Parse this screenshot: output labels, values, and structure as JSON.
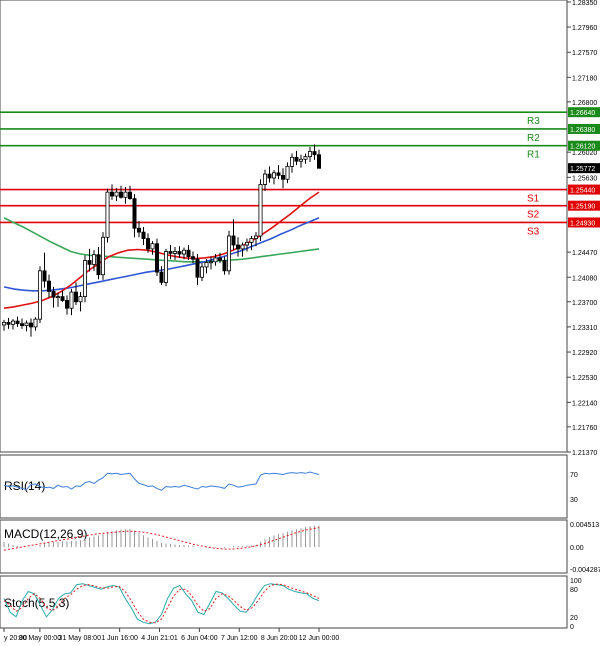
{
  "chart_data": [
    {
      "type": "candlestick",
      "title": "",
      "price_axis": {
        "ylim": [
          1.2137,
          1.2838
        ],
        "ticks": [
          "1.28350",
          "1.27960",
          "1.27570",
          "1.27180",
          "1.26800",
          "1.26020",
          "1.25630",
          "1.24470",
          "1.24080",
          "1.23700",
          "1.23310",
          "1.22920",
          "1.22530",
          "1.22140",
          "1.21760",
          "1.21370"
        ]
      },
      "x_labels": [
        "y 20:00",
        "30 May 00:00",
        "31 May 08:00",
        "1 Jun 16:00",
        "4 Jun 21:01",
        "6 Jun 04:00",
        "7 Jun 12:00",
        "8 Jun 20:00",
        "12 Jun 00:00"
      ],
      "x_label_candle_index": [
        0,
        9,
        19,
        29,
        39,
        49,
        59,
        69,
        79
      ],
      "current_price": "1.25772",
      "levels": [
        {
          "name": "R3",
          "value": 1.2664,
          "label": "1.26640",
          "color": "#1a8a1a"
        },
        {
          "name": "R2",
          "value": 1.2638,
          "label": "1.26380",
          "color": "#1a8a1a"
        },
        {
          "name": "R1",
          "value": 1.2612,
          "label": "1.26120",
          "color": "#1a8a1a"
        },
        {
          "name": "S1",
          "value": 1.2544,
          "label": "1.25440",
          "color": "#e00000"
        },
        {
          "name": "S2",
          "value": 1.2519,
          "label": "1.25190",
          "color": "#e00000"
        },
        {
          "name": "S3",
          "value": 1.2493,
          "label": "1.24930",
          "color": "#e00000"
        }
      ],
      "candles_ohlc": [
        [
          1.2334,
          1.2342,
          1.2325,
          1.2338
        ],
        [
          1.2338,
          1.2345,
          1.2328,
          1.2335
        ],
        [
          1.2335,
          1.2343,
          1.2327,
          1.234
        ],
        [
          1.234,
          1.2347,
          1.2331,
          1.2336
        ],
        [
          1.2336,
          1.2344,
          1.2328,
          1.2333
        ],
        [
          1.2333,
          1.2341,
          1.2324,
          1.2337
        ],
        [
          1.2337,
          1.2344,
          1.2316,
          1.2331
        ],
        [
          1.2331,
          1.2346,
          1.2325,
          1.2343
        ],
        [
          1.2343,
          1.2425,
          1.2337,
          1.2418
        ],
        [
          1.2418,
          1.2446,
          1.2392,
          1.2402
        ],
        [
          1.2402,
          1.2412,
          1.2376,
          1.2386
        ],
        [
          1.2386,
          1.2393,
          1.2361,
          1.2377
        ],
        [
          1.2377,
          1.2384,
          1.2362,
          1.2378
        ],
        [
          1.2378,
          1.2387,
          1.237,
          1.2372
        ],
        [
          1.2372,
          1.238,
          1.235,
          1.236
        ],
        [
          1.236,
          1.239,
          1.2349,
          1.2385
        ],
        [
          1.2385,
          1.24,
          1.2365,
          1.237
        ],
        [
          1.237,
          1.2385,
          1.2355,
          1.2378
        ],
        [
          1.2378,
          1.2442,
          1.2369,
          1.2434
        ],
        [
          1.2434,
          1.2452,
          1.2417,
          1.2428
        ],
        [
          1.2428,
          1.245,
          1.2418,
          1.2443
        ],
        [
          1.2443,
          1.2455,
          1.2405,
          1.2412
        ],
        [
          1.2412,
          1.2478,
          1.2404,
          1.247
        ],
        [
          1.247,
          1.2545,
          1.2462,
          1.254
        ],
        [
          1.254,
          1.2552,
          1.2528,
          1.2534
        ],
        [
          1.2534,
          1.2546,
          1.2526,
          1.254
        ],
        [
          1.254,
          1.255,
          1.253,
          1.2532
        ],
        [
          1.2532,
          1.2548,
          1.2522,
          1.254
        ],
        [
          1.254,
          1.255,
          1.2528,
          1.253
        ],
        [
          1.253,
          1.2537,
          1.247,
          1.2484
        ],
        [
          1.2484,
          1.2495,
          1.247,
          1.2478
        ],
        [
          1.2478,
          1.2486,
          1.2458,
          1.2468
        ],
        [
          1.2468,
          1.2476,
          1.2446,
          1.2452
        ],
        [
          1.2452,
          1.2464,
          1.2443,
          1.246
        ],
        [
          1.246,
          1.2468,
          1.241,
          1.2416
        ],
        [
          1.2416,
          1.2425,
          1.2396,
          1.24
        ],
        [
          1.24,
          1.2452,
          1.2394,
          1.2448
        ],
        [
          1.2448,
          1.2458,
          1.2436,
          1.2445
        ],
        [
          1.2445,
          1.2455,
          1.2435,
          1.2448
        ],
        [
          1.2448,
          1.2456,
          1.2438,
          1.2444
        ],
        [
          1.2444,
          1.2454,
          1.2436,
          1.245
        ],
        [
          1.245,
          1.2458,
          1.2435,
          1.244
        ],
        [
          1.244,
          1.2448,
          1.243,
          1.2436
        ],
        [
          1.2436,
          1.2444,
          1.2396,
          1.2408
        ],
        [
          1.2408,
          1.243,
          1.2402,
          1.2424
        ],
        [
          1.2424,
          1.2436,
          1.2414,
          1.2431
        ],
        [
          1.2431,
          1.244,
          1.242,
          1.2432
        ],
        [
          1.2432,
          1.2444,
          1.2426,
          1.2438
        ],
        [
          1.2438,
          1.2446,
          1.243,
          1.2434
        ],
        [
          1.2434,
          1.244,
          1.2412,
          1.2418
        ],
        [
          1.2418,
          1.248,
          1.2412,
          1.2472
        ],
        [
          1.2472,
          1.2498,
          1.245,
          1.2458
        ],
        [
          1.2458,
          1.247,
          1.244,
          1.2452
        ],
        [
          1.2452,
          1.2462,
          1.244,
          1.2458
        ],
        [
          1.2458,
          1.2468,
          1.2448,
          1.2462
        ],
        [
          1.2462,
          1.2472,
          1.245,
          1.2468
        ],
        [
          1.2468,
          1.2478,
          1.2456,
          1.2472
        ],
        [
          1.2472,
          1.256,
          1.2464,
          1.2552
        ],
        [
          1.2552,
          1.2575,
          1.2542,
          1.2568
        ],
        [
          1.2568,
          1.258,
          1.2555,
          1.2562
        ],
        [
          1.2562,
          1.2574,
          1.2552,
          1.257
        ],
        [
          1.257,
          1.2582,
          1.256,
          1.2566
        ],
        [
          1.2566,
          1.2577,
          1.2546,
          1.256
        ],
        [
          1.256,
          1.2586,
          1.2554,
          1.258
        ],
        [
          1.258,
          1.26,
          1.257,
          1.2594
        ],
        [
          1.2594,
          1.2604,
          1.2582,
          1.2588
        ],
        [
          1.2588,
          1.2598,
          1.2578,
          1.2591
        ],
        [
          1.2591,
          1.26,
          1.2584,
          1.2595
        ],
        [
          1.2595,
          1.261,
          1.2587,
          1.2603
        ],
        [
          1.2603,
          1.2614,
          1.259,
          1.2598
        ],
        [
          1.2598,
          1.2606,
          1.2588,
          1.2577
        ]
      ],
      "ma_red": [
        1.236,
        1.2362,
        1.2365,
        1.2368,
        1.2372,
        1.2378,
        1.2386,
        1.2396,
        1.2408,
        1.242,
        1.243,
        1.244,
        1.2446,
        1.245,
        1.2451,
        1.245,
        1.2447,
        1.2443,
        1.244,
        1.2438,
        1.2437,
        1.2438,
        1.244,
        1.2444,
        1.245,
        1.2457,
        1.2465,
        1.2474,
        1.2484,
        1.2495,
        1.2506,
        1.2518,
        1.253,
        1.254
      ],
      "ma_blue": [
        1.2393,
        1.239,
        1.2388,
        1.2387,
        1.2387,
        1.2388,
        1.239,
        1.2392,
        1.2395,
        1.2398,
        1.2401,
        1.2404,
        1.2407,
        1.241,
        1.2413,
        1.2416,
        1.2418,
        1.242,
        1.2423,
        1.2426,
        1.2429,
        1.2432,
        1.2436,
        1.244,
        1.2445,
        1.245,
        1.2456,
        1.2462,
        1.2468,
        1.2475,
        1.2481,
        1.2488,
        1.2494,
        1.25
      ],
      "ma_green": [
        1.25,
        1.2493,
        1.2486,
        1.2478,
        1.247,
        1.2462,
        1.2455,
        1.2448,
        1.2444,
        1.2442,
        1.2441,
        1.244,
        1.2439,
        1.2438,
        1.2437,
        1.2436,
        1.2435,
        1.2434,
        1.2433,
        1.2432,
        1.2432,
        1.2432,
        1.2433,
        1.2434,
        1.2435,
        1.2436,
        1.2438,
        1.244,
        1.2442,
        1.2444,
        1.2446,
        1.2448,
        1.245,
        1.2452
      ]
    },
    {
      "type": "line",
      "name": "RSI",
      "title": "RSI(14)",
      "ticks": [
        "70",
        "30"
      ],
      "ylim": [
        0,
        100
      ],
      "values": [
        52,
        50,
        51,
        49,
        47,
        45,
        53,
        54,
        50,
        48,
        49,
        47,
        52,
        49,
        50,
        46,
        51,
        50,
        56,
        58,
        55,
        60,
        64,
        71,
        70,
        71,
        69,
        70,
        71,
        62,
        55,
        53,
        50,
        51,
        47,
        44,
        50,
        49,
        50,
        49,
        52,
        50,
        48,
        46,
        50,
        49,
        51,
        50,
        49,
        47,
        54,
        52,
        49,
        50,
        52,
        53,
        54,
        68,
        71,
        70,
        71,
        70,
        69,
        71,
        72,
        71,
        72,
        71,
        73,
        71,
        69
      ]
    },
    {
      "type": "histogram",
      "name": "MACD",
      "title": "MACD(12,26,9)",
      "ticks": [
        "0.004513",
        "0.00",
        "-0.004287"
      ],
      "ylim": [
        -0.004287,
        0.004513
      ],
      "histogram": [
        0.001,
        0.0007,
        0.0004,
        0.0002,
        0.0001,
        0.0,
        -0.0001,
        0.0001,
        0.0004,
        0.0007,
        0.0009,
        0.001,
        0.001,
        0.0011,
        0.0011,
        0.0012,
        0.0012,
        0.0013,
        0.0016,
        0.0019,
        0.0021,
        0.0023,
        0.0026,
        0.003,
        0.0032,
        0.0033,
        0.0034,
        0.0035,
        0.0035,
        0.0032,
        0.0027,
        0.0023,
        0.0019,
        0.0016,
        0.0012,
        0.0008,
        0.0007,
        0.0006,
        0.0005,
        0.0004,
        0.0004,
        0.0003,
        0.0002,
        0.0,
        0.0,
        -0.0001,
        -0.0001,
        -0.0001,
        -0.0001,
        -0.0002,
        0.0,
        0.0002,
        0.0002,
        0.0002,
        0.0003,
        0.0003,
        0.0004,
        0.0011,
        0.0016,
        0.002,
        0.0023,
        0.0026,
        0.0027,
        0.003,
        0.0033,
        0.0035,
        0.0037,
        0.0039,
        0.0041,
        0.0042,
        0.0042
      ],
      "signal": [
        -0.0006,
        -0.0004,
        -0.0002,
        0.0,
        0.0002,
        0.0004,
        0.0006,
        0.0008,
        0.001,
        0.0012,
        0.0014,
        0.0016,
        0.0018,
        0.002,
        0.0022,
        0.0024,
        0.0026,
        0.0027,
        0.0028,
        0.0029,
        0.003,
        0.0031,
        0.0031,
        0.003,
        0.0029,
        0.0027,
        0.0025,
        0.0022,
        0.0019,
        0.0016,
        0.0013,
        0.001,
        0.0007,
        0.0004,
        0.0002,
        0.0,
        -0.0002,
        -0.0003,
        -0.0004,
        -0.0004,
        -0.0003,
        -0.0002,
        0.0,
        0.0002,
        0.0005,
        0.0008,
        0.0012,
        0.0016,
        0.002,
        0.0024,
        0.0028,
        0.0031,
        0.0034,
        0.0036,
        0.0038
      ]
    },
    {
      "type": "line",
      "name": "Stochastic",
      "title": "Stoch(5,5,3)",
      "ticks": [
        "100",
        "80",
        "20",
        "0"
      ],
      "ylim": [
        0,
        100
      ],
      "k_line": [
        60,
        30,
        20,
        55,
        75,
        70,
        45,
        20,
        35,
        60,
        70,
        72,
        90,
        92,
        88,
        84,
        80,
        85,
        88,
        85,
        60,
        40,
        15,
        8,
        5,
        8,
        25,
        60,
        82,
        88,
        70,
        55,
        30,
        25,
        50,
        75,
        72,
        60,
        45,
        32,
        30,
        48,
        70,
        88,
        92,
        90,
        88,
        80,
        75,
        72,
        70,
        60,
        55
      ],
      "d_line": [
        55,
        45,
        32,
        40,
        60,
        70,
        60,
        40,
        33,
        45,
        60,
        68,
        80,
        88,
        90,
        87,
        83,
        82,
        85,
        86,
        75,
        55,
        32,
        15,
        8,
        7,
        15,
        40,
        65,
        80,
        80,
        66,
        45,
        32,
        38,
        60,
        70,
        66,
        55,
        42,
        34,
        40,
        56,
        75,
        88,
        91,
        90,
        85,
        80,
        76,
        72,
        66,
        60
      ]
    }
  ]
}
